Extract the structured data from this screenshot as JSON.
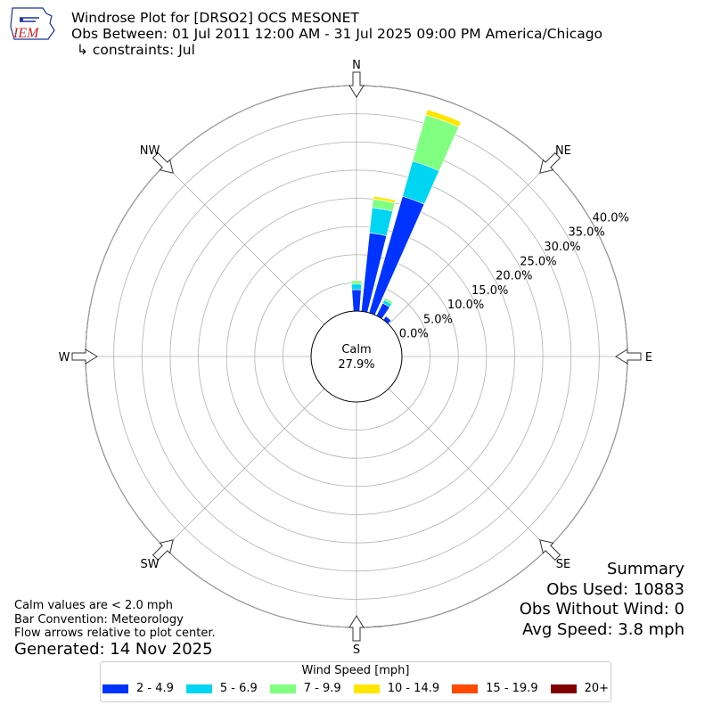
{
  "header": {
    "logo_text": "IEM",
    "title": "Windrose Plot for [DRSO2] OCS MESONET",
    "obs_between": "Obs Between: 01 Jul 2011 12:00 AM - 31 Jul 2025 09:00 PM America/Chicago",
    "constraints": "↳ constraints: Jul"
  },
  "notes": {
    "calm_note": "Calm values are < 2.0 mph",
    "bar_convention": "Bar Convention: Meteorology",
    "flow_arrows": "Flow arrows relative to plot center.",
    "generated": "Generated: 14 Nov 2025"
  },
  "summary": {
    "title": "Summary",
    "obs_used": "Obs Used: 10883",
    "obs_without_wind": "Obs Without Wind: 0",
    "avg_speed": "Avg Speed: 3.8 mph"
  },
  "legend": {
    "title": "Wind Speed [mph]"
  },
  "chart_data": {
    "type": "windrose",
    "calm_label": "Calm",
    "calm_value": "27.9%",
    "directions": [
      "N",
      "NE",
      "E",
      "SE",
      "S",
      "SW",
      "W",
      "NW"
    ],
    "radial_ticks": [
      "0.0%",
      "5.0%",
      "10.0%",
      "15.0%",
      "20.0%",
      "25.0%",
      "30.0%",
      "35.0%",
      "40.0%"
    ],
    "rmax": 40,
    "grid": true,
    "legend_position": "bottom",
    "bins": [
      {
        "label": "2 - 4.9",
        "color": "#0033ff"
      },
      {
        "label": "5 - 6.9",
        "color": "#00d5f2"
      },
      {
        "label": "7 - 9.9",
        "color": "#80ff80"
      },
      {
        "label": "10 - 14.9",
        "color": "#ffe600"
      },
      {
        "label": "15 - 19.9",
        "color": "#ff4a00"
      },
      {
        "label": "20+",
        "color": "#800000"
      }
    ],
    "sectors": [
      {
        "direction_deg": 0,
        "values": [
          3.8,
          1.0,
          0.6,
          0.0,
          0.0,
          0.0
        ]
      },
      {
        "direction_deg": 10,
        "values": [
          14.0,
          4.5,
          1.5,
          0.5,
          0.0,
          0.0
        ]
      },
      {
        "direction_deg": 20,
        "values": [
          21.5,
          6.5,
          8.5,
          1.0,
          0.0,
          0.0
        ]
      },
      {
        "direction_deg": 30,
        "values": [
          2.5,
          0.6,
          0.4,
          0.0,
          0.0,
          0.0
        ]
      },
      {
        "direction_deg": 40,
        "values": [
          0.8,
          0.0,
          0.0,
          0.0,
          0.0,
          0.0
        ]
      }
    ]
  }
}
